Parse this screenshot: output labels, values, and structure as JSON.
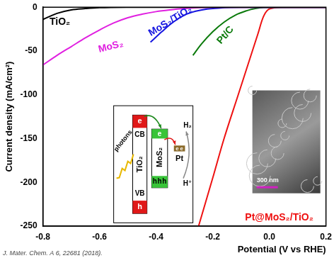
{
  "chart_data": {
    "type": "line",
    "x_label": "Potential (V vs RHE)",
    "y_label": "Current density (mA/cm²)",
    "xlim": [
      -0.8,
      0.2
    ],
    "xticks": [
      -0.8,
      -0.6,
      -0.4,
      -0.2,
      {
        "value": 0,
        "label": "0.0"
      },
      0.2
    ],
    "ylim": [
      -250,
      0
    ],
    "yticks": [
      -250,
      -200,
      -150,
      -100,
      -50,
      0
    ],
    "grid": false,
    "citation": "J. Mater. Chem. A 6, 22681 (2018).",
    "series": [
      {
        "name": "TiO₂",
        "color": "#000000",
        "x": [
          -0.8,
          -0.75,
          -0.7,
          -0.65,
          -0.6,
          -0.5,
          -0.4,
          0.2
        ],
        "values": [
          -14,
          -7,
          -3,
          -1.5,
          -0.5,
          0,
          0,
          0
        ]
      },
      {
        "name": "MoS₂",
        "color": "#e020e0",
        "x": [
          -0.8,
          -0.75,
          -0.7,
          -0.65,
          -0.6,
          -0.55,
          -0.5,
          -0.45,
          -0.4,
          -0.35,
          -0.3,
          -0.25,
          -0.2,
          0.2
        ],
        "values": [
          -66,
          -55,
          -45,
          -35,
          -26,
          -18,
          -12,
          -8,
          -5,
          -3,
          -1.5,
          -0.5,
          0,
          0
        ]
      },
      {
        "name": "MoS₂/TiO₂",
        "color": "#1515e0",
        "x": [
          -0.42,
          -0.38,
          -0.34,
          -0.3,
          -0.26,
          -0.22,
          -0.18,
          -0.14,
          -0.1,
          0.2
        ],
        "values": [
          -40,
          -28,
          -17,
          -9,
          -4.5,
          -2,
          -1,
          -0.3,
          0,
          0
        ]
      },
      {
        "name": "Pt/C",
        "color": "#0b7a0b",
        "x": [
          -0.27,
          -0.24,
          -0.2,
          -0.16,
          -0.12,
          -0.08,
          -0.05,
          -0.02,
          0.2
        ],
        "values": [
          -55,
          -42,
          -28,
          -17,
          -9,
          -4,
          -1.5,
          -0.3,
          0
        ]
      },
      {
        "name": "Pt@MoS₂/TiO₂",
        "color": "#ee1111",
        "x": [
          -0.25,
          -0.2,
          -0.16,
          -0.11,
          -0.07,
          -0.04,
          -0.02,
          0,
          0.05,
          0.2
        ],
        "values": [
          -250,
          -195,
          -150,
          -100,
          -60,
          -30,
          -10,
          -2,
          0,
          0
        ]
      }
    ],
    "inset": {
      "photons": "photons",
      "CB": "CB",
      "VB": "VB",
      "TiO2": "TiO₂",
      "MoS2": "MoS₂",
      "Pt": "Pt",
      "H2": "H₂",
      "Hplus": "H⁺",
      "electron": "e",
      "hole": "h",
      "scale_bar": "300 nm"
    }
  }
}
